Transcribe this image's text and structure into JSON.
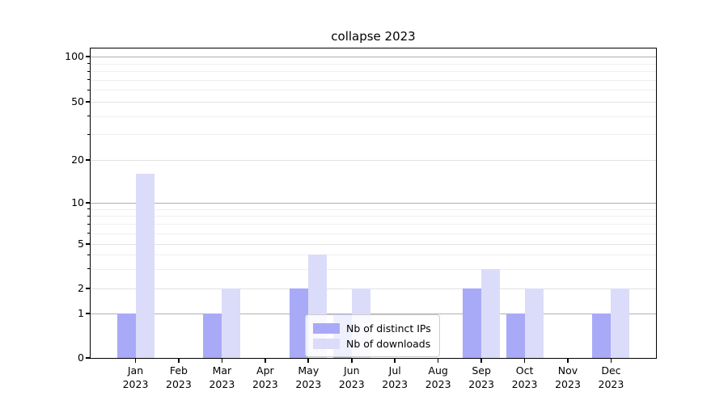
{
  "chart_data": {
    "type": "bar",
    "title": "collapse 2023",
    "categories": [
      "Jan",
      "Feb",
      "Mar",
      "Apr",
      "May",
      "Jun",
      "Jul",
      "Aug",
      "Sep",
      "Oct",
      "Nov",
      "Dec"
    ],
    "x_year": "2023",
    "series": [
      {
        "name": "Nb of distinct IPs",
        "color": "#a8aaf7",
        "values": [
          1,
          0,
          1,
          0,
          2,
          1,
          0,
          0,
          2,
          1,
          0,
          1
        ]
      },
      {
        "name": "Nb of downloads",
        "color": "#dbdcf9",
        "values": [
          16,
          0,
          2,
          0,
          4,
          2,
          0,
          0,
          3,
          2,
          0,
          2
        ]
      }
    ],
    "xlabel": "",
    "ylabel": "",
    "ylim": [
      0,
      100
    ],
    "yscale": "log-like",
    "y_major_ticks": [
      0,
      1,
      2,
      5,
      10,
      20,
      50,
      100
    ],
    "y_minor_gridlines": [
      3,
      4,
      6,
      7,
      8,
      9,
      30,
      40,
      60,
      70,
      80,
      90
    ],
    "grid": true,
    "legend_position": "lower center inside plot",
    "colors": {
      "decade_gridline": "#b0b0b0",
      "mid_gridline": "#e2e2e2",
      "minor_gridline": "#efefef",
      "spine": "#000000",
      "legend_border": "#cccccc"
    }
  }
}
